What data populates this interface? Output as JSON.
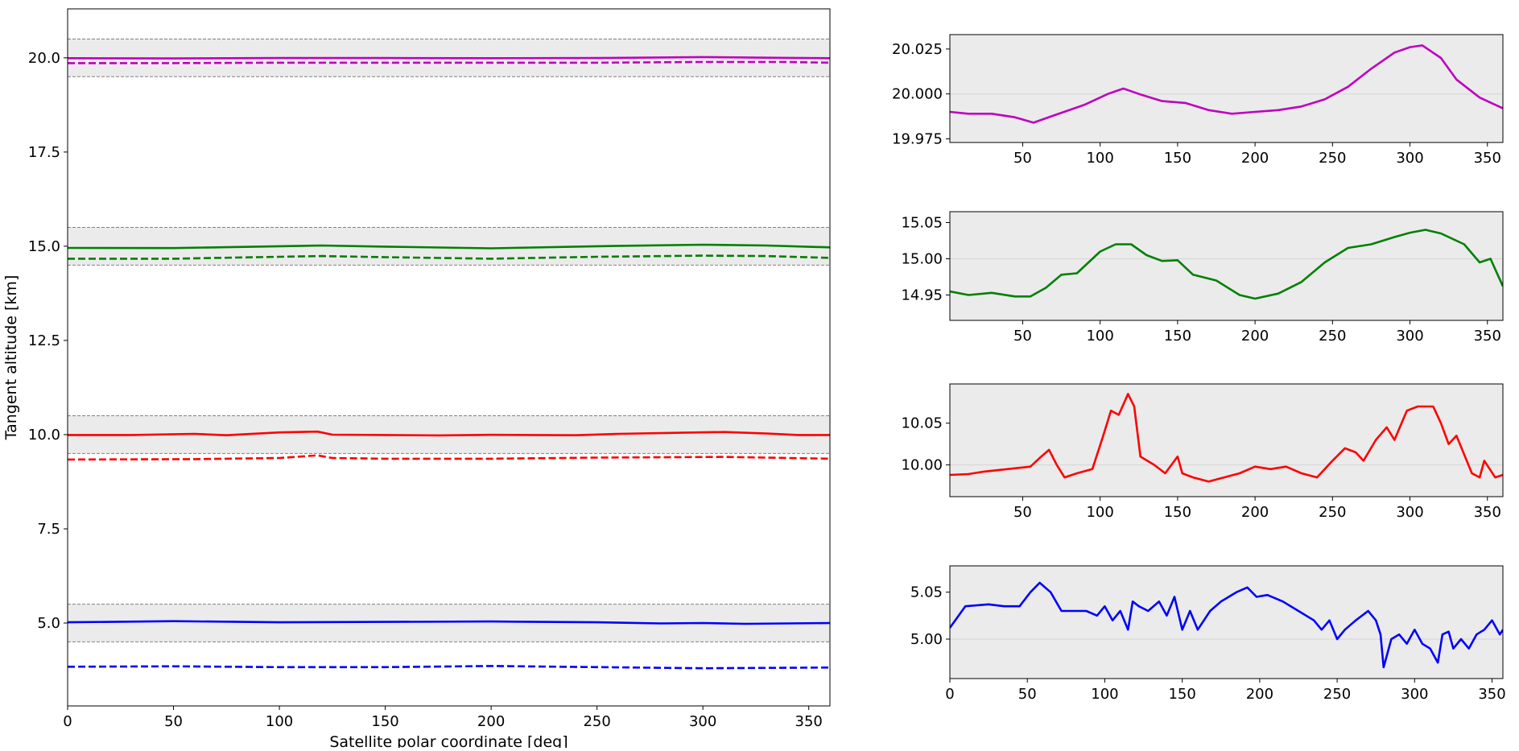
{
  "chart_data": [
    {
      "type": "line",
      "panel": "main",
      "xlabel": "Satellite polar coordinate [deg]",
      "ylabel": "Tangent altitude [km]",
      "xlim": [
        0,
        360
      ],
      "ylim": [
        2.8,
        21.3
      ],
      "xticks": [
        "0",
        "50",
        "100",
        "150",
        "200",
        "250",
        "300",
        "350"
      ],
      "yticks": [
        "5.0",
        "7.5",
        "10.0",
        "12.5",
        "15.0",
        "17.5",
        "20.0"
      ],
      "bands": [
        {
          "ymin": 19.5,
          "ymax": 20.5
        },
        {
          "ymin": 14.5,
          "ymax": 15.5
        },
        {
          "ymin": 9.5,
          "ymax": 10.5
        },
        {
          "ymin": 4.5,
          "ymax": 5.5
        }
      ],
      "series": [
        {
          "name": "20 km solid",
          "color": "#bf00bf",
          "dash": false,
          "x": [
            0,
            50,
            100,
            150,
            200,
            250,
            300,
            340,
            360
          ],
          "values": [
            19.99,
            19.985,
            19.995,
            19.995,
            19.99,
            19.995,
            20.02,
            20.0,
            19.99
          ]
        },
        {
          "name": "20 km dashed",
          "color": "#bf00bf",
          "dash": true,
          "x": [
            0,
            50,
            100,
            150,
            200,
            250,
            300,
            340,
            360
          ],
          "values": [
            19.86,
            19.86,
            19.87,
            19.87,
            19.87,
            19.87,
            19.89,
            19.89,
            19.87
          ]
        },
        {
          "name": "15 km solid",
          "color": "#008000",
          "dash": false,
          "x": [
            0,
            50,
            100,
            120,
            150,
            200,
            250,
            300,
            330,
            360
          ],
          "values": [
            14.955,
            14.95,
            15.0,
            15.02,
            14.99,
            14.945,
            15.0,
            15.04,
            15.02,
            14.97
          ]
        },
        {
          "name": "15 km dashed",
          "color": "#008000",
          "dash": true,
          "x": [
            0,
            50,
            100,
            120,
            150,
            200,
            250,
            300,
            330,
            360
          ],
          "values": [
            14.67,
            14.67,
            14.72,
            14.74,
            14.71,
            14.67,
            14.72,
            14.75,
            14.74,
            14.69
          ]
        },
        {
          "name": "10 km solid",
          "color": "#ff0000",
          "dash": false,
          "x": [
            0,
            30,
            60,
            75,
            100,
            118,
            125,
            150,
            175,
            200,
            240,
            260,
            290,
            310,
            330,
            345,
            360
          ],
          "values": [
            9.99,
            9.99,
            10.02,
            9.985,
            10.06,
            10.08,
            10.0,
            9.99,
            9.98,
            9.995,
            9.985,
            10.02,
            10.05,
            10.07,
            10.03,
            9.99,
            9.99
          ]
        },
        {
          "name": "10 km dashed",
          "color": "#ff0000",
          "dash": true,
          "x": [
            0,
            60,
            100,
            118,
            125,
            150,
            200,
            250,
            310,
            360
          ],
          "values": [
            9.34,
            9.35,
            9.38,
            9.45,
            9.38,
            9.36,
            9.36,
            9.39,
            9.41,
            9.36
          ]
        },
        {
          "name": "5 km solid",
          "color": "#0000ff",
          "dash": false,
          "x": [
            0,
            50,
            100,
            150,
            200,
            250,
            280,
            300,
            320,
            360
          ],
          "values": [
            5.02,
            5.05,
            5.02,
            5.03,
            5.04,
            5.02,
            4.99,
            5.0,
            4.98,
            5.0
          ]
        },
        {
          "name": "5 km dashed",
          "color": "#0000ff",
          "dash": true,
          "x": [
            0,
            50,
            100,
            150,
            200,
            250,
            300,
            360
          ],
          "values": [
            3.84,
            3.85,
            3.83,
            3.83,
            3.86,
            3.83,
            3.8,
            3.82
          ]
        }
      ]
    },
    {
      "type": "line",
      "panel": "zoom-20km",
      "xlim": [
        3,
        360
      ],
      "ylim": [
        19.973,
        20.033
      ],
      "xticks": [
        "50",
        "100",
        "150",
        "200",
        "250",
        "300",
        "350"
      ],
      "yticks": [
        "19.975",
        "20.000",
        "20.025"
      ],
      "refline": 20.0,
      "series": [
        {
          "name": "20 km",
          "color": "#bf00bf",
          "x": [
            3,
            15,
            30,
            45,
            57,
            70,
            90,
            105,
            115,
            125,
            140,
            155,
            170,
            185,
            200,
            215,
            230,
            245,
            260,
            275,
            290,
            300,
            308,
            320,
            330,
            345,
            360
          ],
          "values": [
            19.99,
            19.989,
            19.989,
            19.987,
            19.984,
            19.988,
            19.994,
            20.0,
            20.003,
            20.0,
            19.996,
            19.995,
            19.991,
            19.989,
            19.99,
            19.991,
            19.993,
            19.997,
            20.004,
            20.014,
            20.023,
            20.026,
            20.027,
            20.02,
            20.008,
            19.998,
            19.992
          ]
        }
      ]
    },
    {
      "type": "line",
      "panel": "zoom-15km",
      "xlim": [
        3,
        360
      ],
      "ylim": [
        14.915,
        15.065
      ],
      "xticks": [
        "50",
        "100",
        "150",
        "200",
        "250",
        "300",
        "350"
      ],
      "yticks": [
        "14.95",
        "15.00",
        "15.05"
      ],
      "refline": 15.0,
      "series": [
        {
          "name": "15 km",
          "color": "#008000",
          "x": [
            3,
            15,
            30,
            45,
            55,
            65,
            75,
            85,
            100,
            110,
            120,
            130,
            140,
            150,
            160,
            175,
            190,
            200,
            215,
            230,
            245,
            260,
            275,
            290,
            300,
            310,
            320,
            335,
            345,
            352,
            360
          ],
          "values": [
            14.955,
            14.95,
            14.953,
            14.948,
            14.948,
            14.96,
            14.978,
            14.98,
            15.01,
            15.02,
            15.02,
            15.005,
            14.997,
            14.998,
            14.978,
            14.97,
            14.95,
            14.945,
            14.952,
            14.968,
            14.995,
            15.015,
            15.02,
            15.03,
            15.036,
            15.04,
            15.035,
            15.02,
            14.995,
            15.0,
            14.962
          ]
        }
      ]
    },
    {
      "type": "line",
      "panel": "zoom-10km",
      "xlim": [
        3,
        360
      ],
      "ylim": [
        9.962,
        10.097
      ],
      "xticks": [
        "50",
        "100",
        "150",
        "200",
        "250",
        "300",
        "350"
      ],
      "yticks": [
        "10.00",
        "10.05"
      ],
      "refline": 10.0,
      "series": [
        {
          "name": "10 km",
          "color": "#ff0000",
          "x": [
            3,
            15,
            25,
            40,
            55,
            62,
            67,
            72,
            77,
            85,
            95,
            102,
            107,
            112,
            118,
            122,
            126,
            135,
            142,
            150,
            153,
            160,
            170,
            180,
            190,
            200,
            210,
            220,
            230,
            240,
            250,
            258,
            265,
            270,
            278,
            285,
            290,
            298,
            305,
            315,
            320,
            325,
            330,
            340,
            345,
            348,
            355,
            360
          ],
          "values": [
            9.988,
            9.989,
            9.992,
            9.995,
            9.998,
            10.01,
            10.018,
            10.0,
            9.985,
            9.99,
            9.995,
            10.035,
            10.065,
            10.06,
            10.085,
            10.07,
            10.01,
            10.0,
            9.99,
            10.01,
            9.99,
            9.985,
            9.98,
            9.985,
            9.99,
            9.998,
            9.995,
            9.998,
            9.99,
            9.985,
            10.005,
            10.02,
            10.015,
            10.005,
            10.03,
            10.045,
            10.03,
            10.065,
            10.07,
            10.07,
            10.05,
            10.025,
            10.035,
            9.99,
            9.985,
            10.005,
            9.985,
            9.988
          ]
        }
      ]
    },
    {
      "type": "line",
      "panel": "zoom-5km",
      "xlim": [
        0,
        357
      ],
      "ylim": [
        4.958,
        5.078
      ],
      "xticks": [
        "0",
        "50",
        "100",
        "150",
        "200",
        "250",
        "300",
        "350"
      ],
      "yticks": [
        "5.00",
        "5.05"
      ],
      "refline": 5.0,
      "series": [
        {
          "name": "5 km",
          "color": "#0000ff",
          "x": [
            0,
            10,
            25,
            35,
            45,
            52,
            58,
            65,
            72,
            80,
            88,
            95,
            100,
            105,
            110,
            115,
            118,
            122,
            128,
            135,
            140,
            145,
            150,
            155,
            160,
            168,
            175,
            185,
            192,
            198,
            205,
            215,
            225,
            235,
            240,
            245,
            250,
            255,
            262,
            270,
            275,
            278,
            280,
            285,
            290,
            295,
            300,
            305,
            310,
            315,
            318,
            322,
            325,
            330,
            335,
            340,
            345,
            350,
            355,
            357
          ],
          "values": [
            5.012,
            5.035,
            5.037,
            5.035,
            5.035,
            5.05,
            5.06,
            5.05,
            5.03,
            5.03,
            5.03,
            5.025,
            5.035,
            5.02,
            5.03,
            5.01,
            5.04,
            5.035,
            5.03,
            5.04,
            5.025,
            5.045,
            5.01,
            5.03,
            5.01,
            5.03,
            5.04,
            5.05,
            5.055,
            5.045,
            5.047,
            5.04,
            5.03,
            5.02,
            5.01,
            5.02,
            5.0,
            5.01,
            5.02,
            5.03,
            5.02,
            5.005,
            4.97,
            5.0,
            5.005,
            4.995,
            5.01,
            4.995,
            4.99,
            4.975,
            5.005,
            5.008,
            4.99,
            5.0,
            4.99,
            5.005,
            5.01,
            5.02,
            5.005,
            5.01
          ]
        }
      ]
    }
  ]
}
